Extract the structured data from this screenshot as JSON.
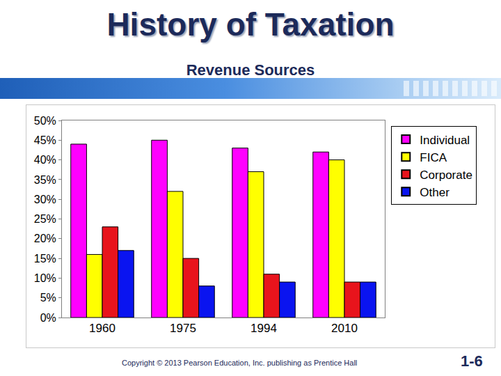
{
  "chart_data": {
    "type": "bar",
    "title": "History of Taxation",
    "subtitle": "Revenue Sources",
    "categories": [
      "1960",
      "1975",
      "1994",
      "2010"
    ],
    "series": [
      {
        "name": "Individual",
        "color": "#ff00ff",
        "values": [
          44,
          45,
          43,
          42
        ]
      },
      {
        "name": "FICA",
        "color": "#ffff00",
        "values": [
          16,
          32,
          37,
          40
        ]
      },
      {
        "name": "Corporate",
        "color": "#e8141c",
        "values": [
          23,
          15,
          11,
          9
        ]
      },
      {
        "name": "Other",
        "color": "#0a14f0",
        "values": [
          17,
          8,
          9,
          9
        ]
      }
    ],
    "ylim": [
      0,
      50
    ],
    "yticks": [
      {
        "value": 0,
        "label": "0%"
      },
      {
        "value": 5,
        "label": "5%"
      },
      {
        "value": 10,
        "label": "10%"
      },
      {
        "value": 15,
        "label": "15%"
      },
      {
        "value": 20,
        "label": "20%"
      },
      {
        "value": 25,
        "label": "25%"
      },
      {
        "value": 30,
        "label": "30%"
      },
      {
        "value": 35,
        "label": "35%"
      },
      {
        "value": 40,
        "label": "40%"
      },
      {
        "value": 45,
        "label": "45%"
      },
      {
        "value": 50,
        "label": "50%"
      }
    ],
    "grid": false,
    "legend": "top right",
    "annotations": [
      "Copyright © 2013 Pearson Education, Inc. publishing as Prentice Hall",
      "1-6"
    ]
  }
}
